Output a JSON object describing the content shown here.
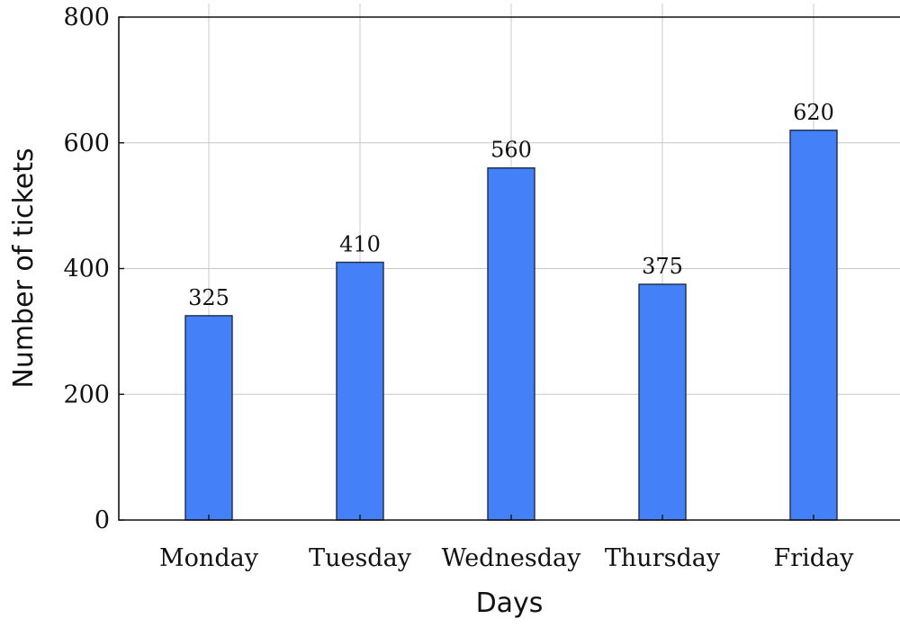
{
  "chart_data": {
    "type": "bar",
    "title": "",
    "xlabel": "Days",
    "ylabel": "Number of tickets",
    "categories": [
      "Monday",
      "Tuesday",
      "Wednesday",
      "Thursday",
      "Friday"
    ],
    "values": [
      325,
      410,
      560,
      375,
      620
    ],
    "data_labels": [
      "325",
      "410",
      "560",
      "375",
      "620"
    ],
    "ylim": [
      0,
      800
    ],
    "yticks": [
      0,
      200,
      400,
      600,
      800
    ],
    "ytick_labels": [
      "0",
      "200",
      "400",
      "600",
      "800"
    ],
    "grid": true,
    "bar_color": "#4480f7"
  }
}
